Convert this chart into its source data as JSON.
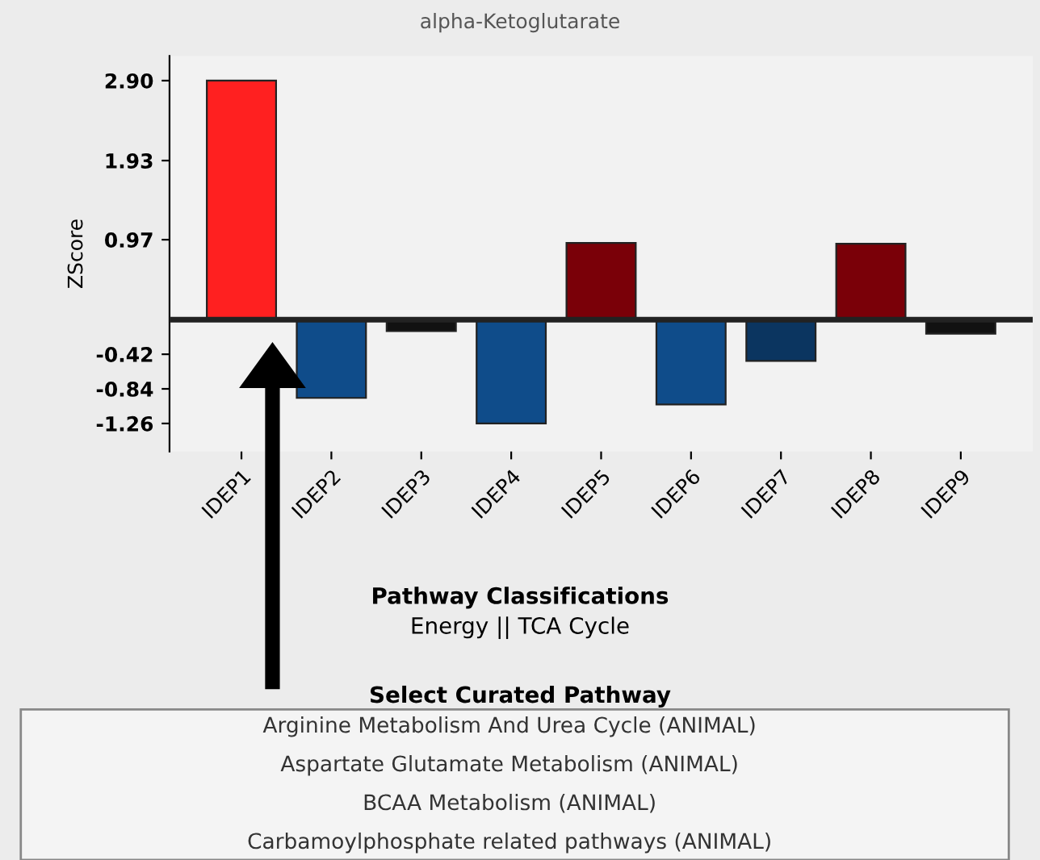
{
  "chart_data": {
    "type": "bar",
    "title": "alpha-Ketoglutarate",
    "ylabel": "ZScore",
    "categories": [
      "IDEP1",
      "IDEP2",
      "IDEP3",
      "IDEP4",
      "IDEP5",
      "IDEP6",
      "IDEP7",
      "IDEP8",
      "IDEP9"
    ],
    "values": [
      2.9,
      -0.95,
      -0.14,
      -1.26,
      0.93,
      -1.03,
      -0.5,
      0.92,
      -0.17
    ],
    "colors": [
      "#ff2020",
      "#0f4c8a",
      "#111111",
      "#0f4c8a",
      "#7a0008",
      "#0f4c8a",
      "#0b3560",
      "#7a0008",
      "#111111"
    ],
    "ylim": [
      -1.6,
      3.2
    ],
    "yticks": [
      {
        "value": 2.9,
        "label": "2.90"
      },
      {
        "value": 1.93,
        "label": "1.93"
      },
      {
        "value": 0.97,
        "label": "0.97"
      },
      {
        "value": -0.42,
        "label": "-0.42"
      },
      {
        "value": -0.84,
        "label": "-0.84"
      },
      {
        "value": -1.26,
        "label": "-1.26"
      }
    ],
    "ref_lines": [
      {
        "axis": "y",
        "value": 0,
        "color": "#222222"
      }
    ],
    "grid": false,
    "annotations": [
      "Pathway Classifications",
      "Energy || TCA Cycle",
      "Select Curated Pathway",
      "Arginine Metabolism And Urea Cycle (ANIMAL)",
      "Aspartate Glutamate Metabolism (ANIMAL)",
      "BCAA Metabolism (ANIMAL)",
      "Carbamoylphosphate related pathways (ANIMAL)"
    ]
  }
}
